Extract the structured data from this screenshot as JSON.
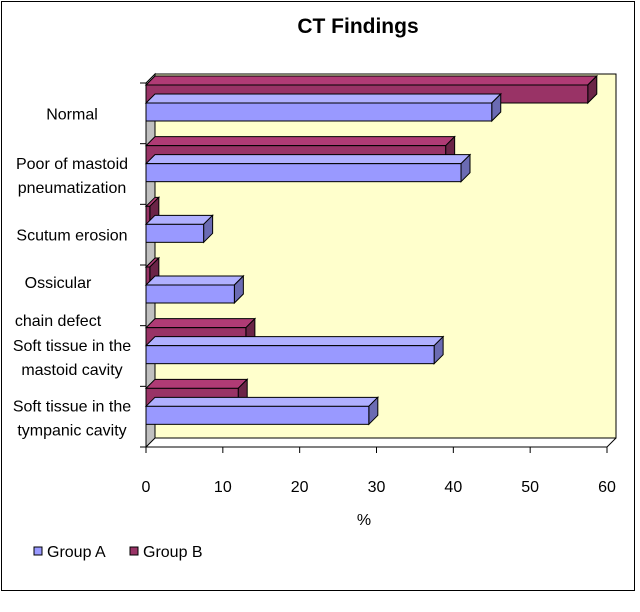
{
  "chart_data": {
    "type": "bar",
    "orientation": "horizontal",
    "three_d": true,
    "title": "CT Findings",
    "xlabel": "%",
    "ylabel": "",
    "xlim": [
      0,
      60
    ],
    "ticks": [
      "0",
      "10",
      "20",
      "30",
      "40",
      "50",
      "60"
    ],
    "categories": [
      [
        "Normal"
      ],
      [
        "Poor  of mastoid",
        "pneumatization"
      ],
      [
        "Scutum erosion"
      ],
      [
        "Ossicular",
        "chain defect"
      ],
      [
        "Soft tissue in the",
        "mastoid cavity"
      ],
      [
        "Soft tissue in the",
        "tympanic cavity"
      ]
    ],
    "series": [
      {
        "name": "Group  A",
        "color": "#9999FF",
        "values": [
          45,
          41,
          7.5,
          11.5,
          37.5,
          29
        ]
      },
      {
        "name": "Group B",
        "color": "#993366",
        "values": [
          57.5,
          39,
          0.5,
          0.5,
          13,
          12
        ]
      }
    ],
    "legend": "bottom-left",
    "plot_background": "#FFFFCC",
    "grid": false
  }
}
